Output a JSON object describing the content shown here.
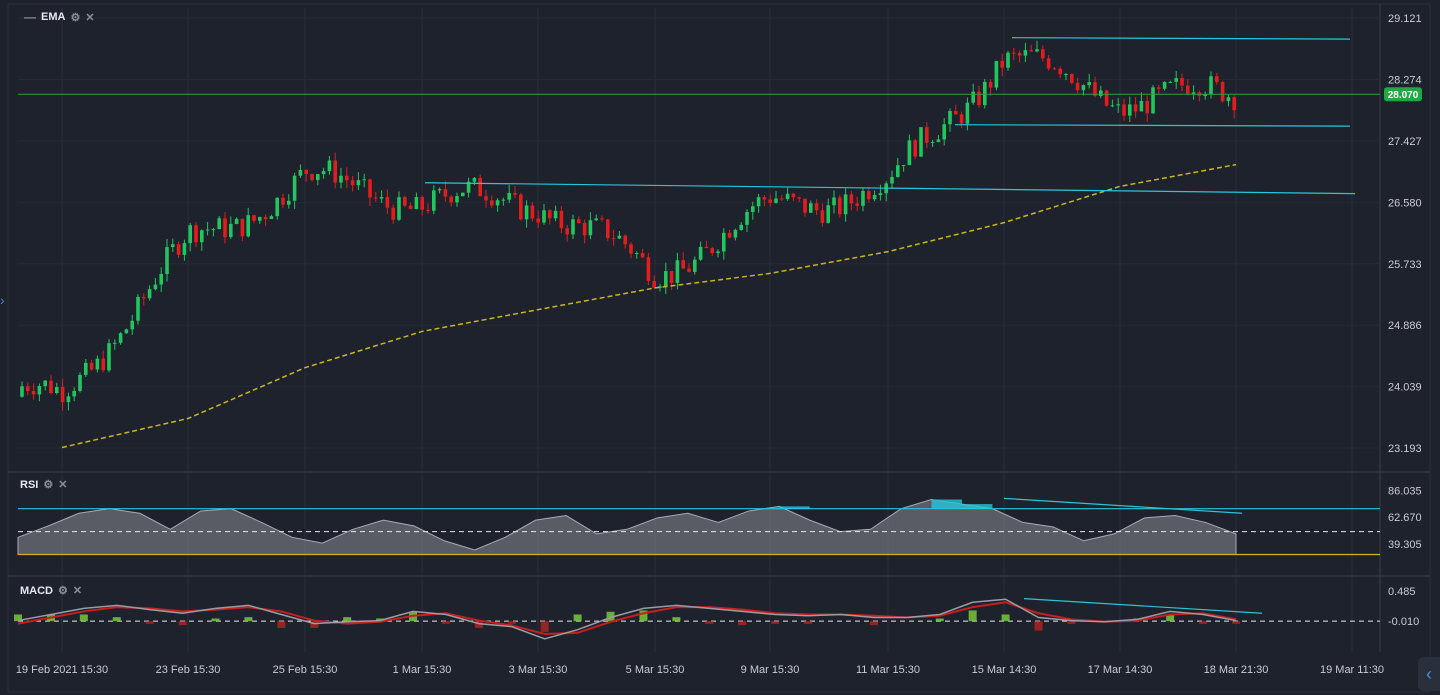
{
  "panels": {
    "main": {
      "label": "EMA",
      "icons": [
        "minimize-icon",
        "settings-icon",
        "close-icon"
      ]
    },
    "rsi": {
      "label": "RSI",
      "icons": [
        "settings-icon",
        "close-icon"
      ]
    },
    "macd": {
      "label": "MACD",
      "icons": [
        "settings-icon",
        "close-icon"
      ]
    }
  },
  "colors": {
    "background": "#1e222d",
    "up": "#22c55e",
    "down": "#e11d1d",
    "ema": "#c9b61f",
    "trendline": "#26c6da",
    "priceline": "#2f9e44",
    "price_badge": "#22a745"
  },
  "chart_data": [
    {
      "type": "candlestick",
      "panel": "main",
      "y_ticks": [
        "29.121",
        "28.274",
        "27.427",
        "26.580",
        "25.733",
        "24.886",
        "24.039",
        "23.193"
      ],
      "ylim": [
        23.193,
        29.121
      ],
      "x_ticks": [
        "19 Feb 2021 15:30",
        "23 Feb 15:30",
        "25 Feb 15:30",
        "1 Mar 15:30",
        "3 Mar 15:30",
        "5 Mar 15:30",
        "9 Mar 15:30",
        "11 Mar 15:30",
        "15 Mar 14:30",
        "17 Mar 14:30",
        "18 Mar 21:30",
        "19 Mar 11:30"
      ],
      "current_price": "28.070",
      "key_points": [
        {
          "x": "19 Feb 2021 15:30",
          "price": 23.9
        },
        {
          "x": "23 Feb 15:30",
          "price": 26.0
        },
        {
          "x": "25 Feb 15:30",
          "price": 26.9
        },
        {
          "x": "1 Mar 15:30",
          "price": 26.6
        },
        {
          "x": "3 Mar 15:30",
          "price": 26.6
        },
        {
          "x": "5 Mar 15:30",
          "price": 25.6
        },
        {
          "x": "9 Mar 15:30",
          "price": 26.5
        },
        {
          "x": "11 Mar 15:30",
          "price": 26.8
        },
        {
          "x": "15 Mar 14:30",
          "price": 28.6
        },
        {
          "x": "17 Mar 14:30",
          "price": 28.0
        },
        {
          "x": "18 Mar 21:30",
          "price": 28.07
        }
      ],
      "ema_series": [
        {
          "x": "19 Feb 2021 15:30",
          "value": 23.2
        },
        {
          "x": "23 Feb 15:30",
          "value": 23.6
        },
        {
          "x": "25 Feb 15:30",
          "value": 24.3
        },
        {
          "x": "1 Mar 15:30",
          "value": 24.8
        },
        {
          "x": "3 Mar 15:30",
          "value": 25.1
        },
        {
          "x": "5 Mar 15:30",
          "value": 25.4
        },
        {
          "x": "9 Mar 15:30",
          "value": 25.6
        },
        {
          "x": "11 Mar 15:30",
          "value": 25.9
        },
        {
          "x": "15 Mar 14:30",
          "value": 26.3
        },
        {
          "x": "17 Mar 14:30",
          "value": 26.8
        },
        {
          "x": "18 Mar 21:30",
          "value": 27.1
        }
      ]
    },
    {
      "type": "area",
      "panel": "rsi",
      "y_ticks": [
        "86.035",
        "62.670",
        "39.305"
      ],
      "ylim": [
        20,
        95
      ],
      "levels": [
        70,
        50,
        30
      ],
      "series": [
        {
          "values": [
            45,
            55,
            66,
            70,
            66,
            52,
            68,
            70,
            58,
            45,
            40,
            52,
            60,
            55,
            42,
            34,
            45,
            60,
            64,
            48,
            52,
            62,
            66,
            58,
            68,
            72,
            60,
            50,
            52,
            70,
            78,
            74,
            70,
            58,
            54,
            42,
            48,
            62,
            64,
            58,
            48
          ]
        }
      ]
    },
    {
      "type": "line",
      "panel": "macd",
      "y_ticks": [
        "0.485",
        "-0.010"
      ],
      "ylim": [
        -0.45,
        0.6
      ],
      "series": [
        {
          "values": [
            0.0,
            0.1,
            0.2,
            0.25,
            0.18,
            0.12,
            0.2,
            0.25,
            0.1,
            -0.05,
            -0.02,
            0.0,
            0.15,
            0.1,
            -0.05,
            -0.1,
            -0.3,
            -0.15,
            0.05,
            0.2,
            0.25,
            0.2,
            0.15,
            0.1,
            0.08,
            0.1,
            0.05,
            0.05,
            0.1,
            0.3,
            0.35,
            0.05,
            0.0,
            -0.02,
            0.02,
            0.15,
            0.1,
            0.0
          ]
        },
        {
          "values": [
            -0.05,
            0.05,
            0.15,
            0.22,
            0.2,
            0.15,
            0.18,
            0.22,
            0.15,
            0.0,
            -0.05,
            -0.02,
            0.08,
            0.12,
            0.0,
            -0.08,
            -0.22,
            -0.2,
            -0.02,
            0.12,
            0.22,
            0.22,
            0.18,
            0.12,
            0.1,
            0.1,
            0.08,
            0.05,
            0.08,
            0.22,
            0.3,
            0.12,
            0.02,
            -0.02,
            0.0,
            0.1,
            0.12,
            0.02
          ]
        }
      ]
    }
  ]
}
